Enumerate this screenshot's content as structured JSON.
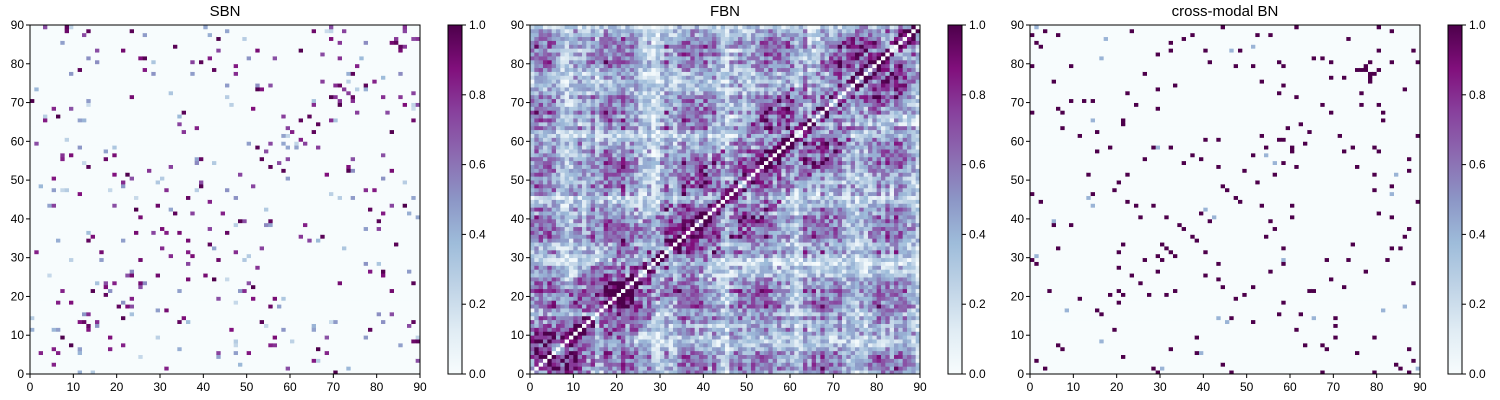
{
  "chart_data": [
    {
      "type": "heatmap",
      "title": "SBN",
      "x": {
        "min": 0,
        "max": 90,
        "ticks": [
          0,
          10,
          20,
          30,
          40,
          50,
          60,
          70,
          80,
          90
        ]
      },
      "y": {
        "min": 0,
        "max": 90,
        "ticks": [
          0,
          10,
          20,
          30,
          40,
          50,
          60,
          70,
          80,
          90
        ]
      },
      "colorbar": {
        "min": 0.0,
        "max": 1.0,
        "ticks": [
          "0.0",
          "0.2",
          "0.4",
          "0.6",
          "0.8",
          "1.0"
        ]
      },
      "colormap": [
        "#f7fcfd",
        "#e0ecf4",
        "#bfd3e6",
        "#9ebcda",
        "#8c96c6",
        "#8c6bb1",
        "#88419d",
        "#810f7c",
        "#4d004b"
      ],
      "grid_size": 90,
      "pattern": "sparse",
      "symmetric": true
    },
    {
      "type": "heatmap",
      "title": "FBN",
      "x": {
        "min": 0,
        "max": 90,
        "ticks": [
          0,
          10,
          20,
          30,
          40,
          50,
          60,
          70,
          80,
          90
        ]
      },
      "y": {
        "min": 0,
        "max": 90,
        "ticks": [
          0,
          10,
          20,
          30,
          40,
          50,
          60,
          70,
          80,
          90
        ]
      },
      "colorbar": {
        "min": 0.0,
        "max": 1.0,
        "ticks": [
          "0.0",
          "0.2",
          "0.4",
          "0.6",
          "0.8",
          "1.0"
        ]
      },
      "colormap": [
        "#f7fcfd",
        "#e0ecf4",
        "#bfd3e6",
        "#9ebcda",
        "#8c96c6",
        "#8c6bb1",
        "#88419d",
        "#810f7c",
        "#4d004b"
      ],
      "grid_size": 90,
      "pattern": "dense",
      "symmetric": true
    },
    {
      "type": "heatmap",
      "title": "cross-modal BN",
      "x": {
        "min": 0,
        "max": 90,
        "ticks": [
          0,
          10,
          20,
          30,
          40,
          50,
          60,
          70,
          80,
          90
        ]
      },
      "y": {
        "min": 0,
        "max": 90,
        "ticks": [
          0,
          10,
          20,
          30,
          40,
          50,
          60,
          70,
          80,
          90
        ]
      },
      "colorbar": {
        "min": 0.0,
        "max": 1.0,
        "ticks": [
          "0.0",
          "0.2",
          "0.4",
          "0.6",
          "0.8",
          "1.0"
        ]
      },
      "colormap": [
        "#f7fcfd",
        "#e0ecf4",
        "#bfd3e6",
        "#9ebcda",
        "#8c96c6",
        "#8c6bb1",
        "#88419d",
        "#810f7c",
        "#4d004b"
      ],
      "grid_size": 90,
      "pattern": "binary-sparse",
      "symmetric": true
    }
  ]
}
